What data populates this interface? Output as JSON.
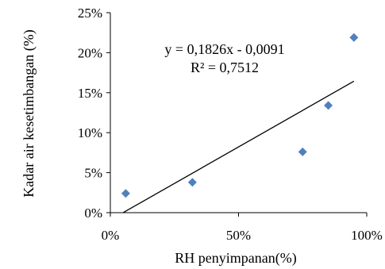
{
  "chart_data": {
    "type": "scatter",
    "title": "",
    "xlabel": "RH penyimpanan(%)",
    "ylabel": "Kadar air kesetimbangan (%)",
    "xlim": [
      0,
      100
    ],
    "ylim": [
      0,
      25
    ],
    "x_ticks": [
      0,
      50,
      100
    ],
    "x_tick_labels": [
      "0%",
      "50%",
      "100%"
    ],
    "y_ticks": [
      0,
      5,
      10,
      15,
      20,
      25
    ],
    "y_tick_labels": [
      "0%",
      "5%",
      "10%",
      "15%",
      "20%",
      "25%"
    ],
    "grid": false,
    "legend": "none",
    "series": [
      {
        "x": [
          6,
          32,
          75,
          85,
          95
        ],
        "y": [
          2.4,
          3.8,
          7.6,
          13.4,
          21.9
        ],
        "color": "#4f81bd",
        "marker": "diamond"
      }
    ],
    "trendline": {
      "type": "linear",
      "slope": 0.1826,
      "intercept": -0.0091,
      "x_range": [
        5,
        95
      ],
      "color": "#000000"
    },
    "annotations": [
      "y = 0,1826x - 0,0091",
      "R² = 0,7512"
    ]
  }
}
